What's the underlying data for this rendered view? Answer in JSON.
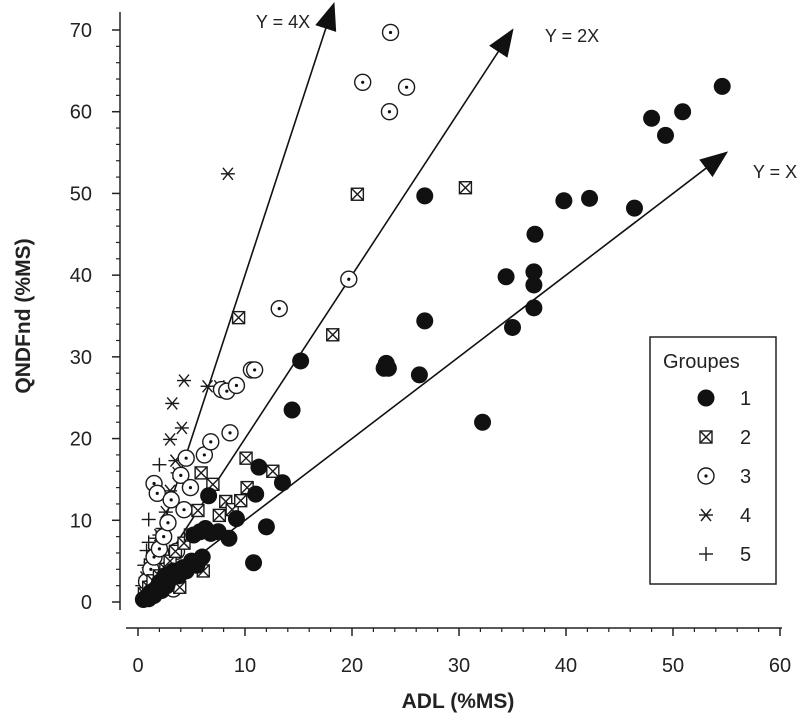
{
  "chart_data": {
    "type": "scatter",
    "xlabel": "ADL (%MS)",
    "ylabel": "QNDFnd (%MS)",
    "xlim": [
      0,
      60
    ],
    "ylim": [
      0,
      70
    ],
    "x_ticks": [
      "0",
      "10",
      "20",
      "30",
      "40",
      "50",
      "60"
    ],
    "y_ticks": [
      "0",
      "10",
      "20",
      "30",
      "40",
      "50",
      "60",
      "70"
    ],
    "reference_lines": [
      {
        "label": "Y = X",
        "slope": 1,
        "end_x": 55
      },
      {
        "label": "Y = 2X",
        "slope": 2,
        "end_x": 35
      },
      {
        "label": "Y = 4X",
        "slope": 4,
        "end_x": 18.3
      }
    ],
    "legend": {
      "title": "Groupes",
      "position": "right"
    },
    "series": [
      {
        "name": "1",
        "marker": "filled-circle",
        "points": [
          [
            0.5,
            0.3
          ],
          [
            0.8,
            0.6
          ],
          [
            1.0,
            0.4
          ],
          [
            1.2,
            1.2
          ],
          [
            1.5,
            0.8
          ],
          [
            1.8,
            1.6
          ],
          [
            2.0,
            2.4
          ],
          [
            2.2,
            1.4
          ],
          [
            2.5,
            3.2
          ],
          [
            2.7,
            2.0
          ],
          [
            3.0,
            2.8
          ],
          [
            3.3,
            3.8
          ],
          [
            3.8,
            3.2
          ],
          [
            4.2,
            4.2
          ],
          [
            4.5,
            3.8
          ],
          [
            5.0,
            5.0
          ],
          [
            5.5,
            4.5
          ],
          [
            6.0,
            5.5
          ],
          [
            5.2,
            8.2
          ],
          [
            5.8,
            8.6
          ],
          [
            6.3,
            9.0
          ],
          [
            6.8,
            8.4
          ],
          [
            7.5,
            8.6
          ],
          [
            8.5,
            7.8
          ],
          [
            9.2,
            10.2
          ],
          [
            10.8,
            4.8
          ],
          [
            11.0,
            13.2
          ],
          [
            11.3,
            16.5
          ],
          [
            12.0,
            9.2
          ],
          [
            13.5,
            14.6
          ],
          [
            14.4,
            23.5
          ],
          [
            15.2,
            29.5
          ],
          [
            6.6,
            13.0
          ],
          [
            23.0,
            28.6
          ],
          [
            23.2,
            29.2
          ],
          [
            23.4,
            28.6
          ],
          [
            26.3,
            27.8
          ],
          [
            26.8,
            34.4
          ],
          [
            26.8,
            49.7
          ],
          [
            32.2,
            22.0
          ],
          [
            34.4,
            39.8
          ],
          [
            35.0,
            33.6
          ],
          [
            37.0,
            36.0
          ],
          [
            37.0,
            38.8
          ],
          [
            37.0,
            40.4
          ],
          [
            37.1,
            45.0
          ],
          [
            39.8,
            49.1
          ],
          [
            42.2,
            49.4
          ],
          [
            46.4,
            48.2
          ],
          [
            48.0,
            59.2
          ],
          [
            49.3,
            57.1
          ],
          [
            50.9,
            60.0
          ],
          [
            54.6,
            63.1
          ]
        ]
      },
      {
        "name": "2",
        "marker": "boxed-x",
        "points": [
          [
            0.6,
            1.0
          ],
          [
            1.0,
            1.8
          ],
          [
            1.4,
            2.6
          ],
          [
            2.0,
            3.2
          ],
          [
            2.6,
            4.0
          ],
          [
            3.0,
            5.0
          ],
          [
            3.5,
            6.2
          ],
          [
            3.9,
            1.8
          ],
          [
            4.3,
            7.2
          ],
          [
            4.9,
            8.2
          ],
          [
            5.6,
            11.2
          ],
          [
            6.1,
            3.8
          ],
          [
            5.9,
            15.8
          ],
          [
            7.0,
            14.4
          ],
          [
            7.6,
            10.6
          ],
          [
            8.2,
            12.3
          ],
          [
            8.8,
            11.3
          ],
          [
            9.6,
            12.4
          ],
          [
            10.1,
            17.6
          ],
          [
            10.2,
            14.0
          ],
          [
            12.6,
            16.0
          ],
          [
            9.4,
            34.8
          ],
          [
            18.2,
            32.7
          ],
          [
            20.5,
            49.9
          ],
          [
            30.6,
            50.7
          ]
        ]
      },
      {
        "name": "3",
        "marker": "dotted-circle",
        "points": [
          [
            0.8,
            2.5
          ],
          [
            1.2,
            4.0
          ],
          [
            1.5,
            5.5
          ],
          [
            1.5,
            14.5
          ],
          [
            1.8,
            13.3
          ],
          [
            2.0,
            6.5
          ],
          [
            2.4,
            8.0
          ],
          [
            2.6,
            3.5
          ],
          [
            2.8,
            9.7
          ],
          [
            3.1,
            12.5
          ],
          [
            3.3,
            1.6
          ],
          [
            3.6,
            6.2
          ],
          [
            4.0,
            15.5
          ],
          [
            4.3,
            11.3
          ],
          [
            4.5,
            17.6
          ],
          [
            4.9,
            14.0
          ],
          [
            6.2,
            18.0
          ],
          [
            6.8,
            19.6
          ],
          [
            7.8,
            26.0
          ],
          [
            8.3,
            25.8
          ],
          [
            8.6,
            20.7
          ],
          [
            9.2,
            26.5
          ],
          [
            10.6,
            28.4
          ],
          [
            10.9,
            28.4
          ],
          [
            13.2,
            35.9
          ],
          [
            19.7,
            39.5
          ],
          [
            21.0,
            63.6
          ],
          [
            23.5,
            60.0
          ],
          [
            23.6,
            69.7
          ],
          [
            25.1,
            63.0
          ]
        ]
      },
      {
        "name": "4",
        "marker": "asterisk",
        "points": [
          [
            0.7,
            3.0
          ],
          [
            1.0,
            4.2
          ],
          [
            1.5,
            5.8
          ],
          [
            2.0,
            8.2
          ],
          [
            2.6,
            11.0
          ],
          [
            3.0,
            13.6
          ],
          [
            3.0,
            19.9
          ],
          [
            3.2,
            24.3
          ],
          [
            3.5,
            17.3
          ],
          [
            3.7,
            15.8
          ],
          [
            4.1,
            21.3
          ],
          [
            4.3,
            27.1
          ],
          [
            6.5,
            26.4
          ],
          [
            7.6,
            26.4
          ],
          [
            8.4,
            52.4
          ]
        ]
      },
      {
        "name": "5",
        "marker": "plus",
        "points": [
          [
            0.4,
            2.0
          ],
          [
            0.6,
            4.5
          ],
          [
            0.8,
            6.3
          ],
          [
            1.0,
            7.3
          ],
          [
            1.0,
            10.1
          ],
          [
            1.2,
            5.2
          ],
          [
            1.4,
            3.6
          ],
          [
            1.7,
            7.8
          ],
          [
            2.0,
            16.8
          ],
          [
            2.3,
            9.0
          ],
          [
            2.7,
            12.6
          ]
        ]
      }
    ]
  }
}
